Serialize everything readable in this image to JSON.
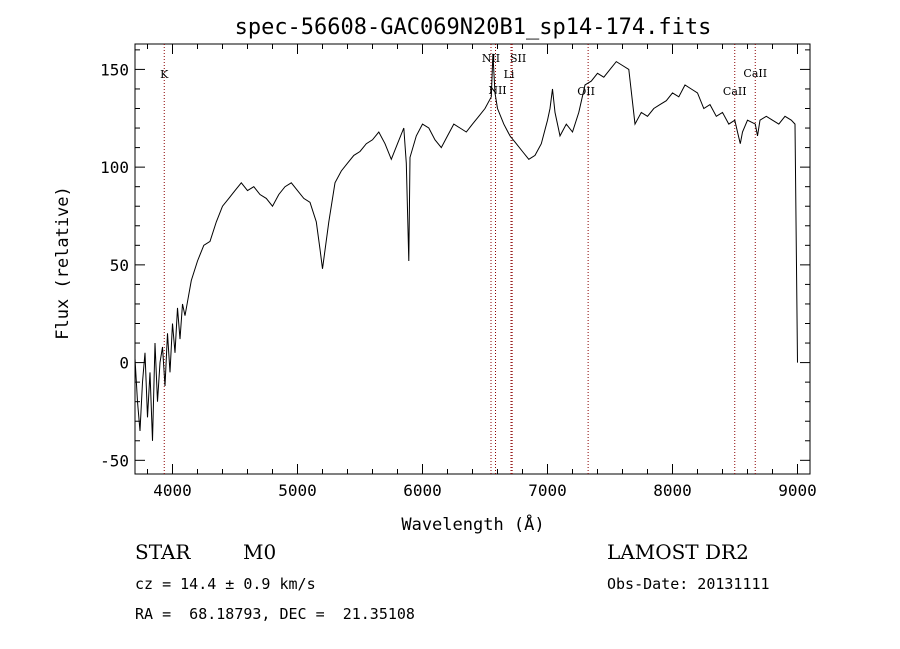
{
  "chart_data": {
    "type": "line",
    "title": "spec-56608-GAC069N20B1_sp14-174.fits",
    "xlabel": "Wavelength (Å)",
    "ylabel": "Flux (relative)",
    "xlim": [
      3700,
      9100
    ],
    "ylim": [
      -57,
      163
    ],
    "xticks": [
      4000,
      5000,
      6000,
      7000,
      8000,
      9000
    ],
    "yticks": [
      -50,
      0,
      50,
      100,
      150
    ],
    "line_color": "#000000",
    "marker_color": "#8b0000",
    "grid": false,
    "series": [
      {
        "x": [
          3700,
          3720,
          3740,
          3760,
          3780,
          3800,
          3820,
          3840,
          3860,
          3880,
          3900,
          3920,
          3940,
          3960,
          3980,
          4000,
          4020,
          4040,
          4060,
          4080,
          4100,
          4150,
          4200,
          4250,
          4300,
          4350,
          4400,
          4450,
          4500,
          4550,
          4600,
          4650,
          4700,
          4750,
          4800,
          4850,
          4900,
          4950,
          5000,
          5050,
          5100,
          5150,
          5180,
          5200,
          5250,
          5300,
          5350,
          5400,
          5450,
          5500,
          5550,
          5600,
          5650,
          5700,
          5750,
          5800,
          5850,
          5870,
          5880,
          5890,
          5900,
          5950,
          6000,
          6050,
          6100,
          6150,
          6200,
          6250,
          6300,
          6350,
          6400,
          6450,
          6500,
          6550,
          6563,
          6580,
          6600,
          6650,
          6700,
          6750,
          6800,
          6850,
          6900,
          6950,
          7000,
          7020,
          7040,
          7060,
          7080,
          7100,
          7150,
          7200,
          7250,
          7300,
          7350,
          7400,
          7450,
          7500,
          7550,
          7600,
          7650,
          7700,
          7750,
          7800,
          7850,
          7900,
          7950,
          8000,
          8050,
          8100,
          8150,
          8200,
          8250,
          8300,
          8350,
          8400,
          8450,
          8498,
          8520,
          8542,
          8560,
          8600,
          8662,
          8680,
          8700,
          8750,
          8800,
          8850,
          8900,
          8950,
          8980,
          9000
        ],
        "y": [
          2,
          -20,
          -35,
          -10,
          5,
          -28,
          -5,
          -40,
          10,
          -20,
          0,
          8,
          -12,
          15,
          -5,
          20,
          5,
          28,
          12,
          30,
          24,
          42,
          52,
          60,
          62,
          72,
          80,
          84,
          88,
          92,
          88,
          90,
          86,
          84,
          80,
          86,
          90,
          92,
          88,
          84,
          82,
          72,
          58,
          48,
          72,
          92,
          98,
          102,
          106,
          108,
          112,
          114,
          118,
          112,
          104,
          112,
          120,
          102,
          78,
          52,
          105,
          116,
          122,
          120,
          114,
          110,
          116,
          122,
          120,
          118,
          122,
          126,
          130,
          136,
          158,
          138,
          130,
          122,
          116,
          112,
          108,
          104,
          106,
          112,
          124,
          130,
          140,
          128,
          122,
          116,
          122,
          118,
          128,
          142,
          144,
          148,
          146,
          150,
          154,
          152,
          150,
          122,
          128,
          126,
          130,
          132,
          134,
          138,
          136,
          142,
          140,
          138,
          130,
          132,
          126,
          128,
          122,
          124,
          118,
          112,
          118,
          124,
          122,
          116,
          124,
          126,
          124,
          122,
          126,
          124,
          122,
          0
        ]
      }
    ],
    "spectral_lines": [
      {
        "label": "K",
        "x": 3934
      },
      {
        "label": "NII",
        "x": 6548
      },
      {
        "label": "NII",
        "x": 6584
      },
      {
        "label": "SII",
        "x": 6717
      },
      {
        "label": "Li",
        "x": 6708
      },
      {
        "label": "OII",
        "x": 7325
      },
      {
        "label": "CaII",
        "x": 8498
      },
      {
        "label": "CaII",
        "x": 8662
      }
    ]
  },
  "info": {
    "class_label": "STAR",
    "subclass": "M0",
    "survey": "LAMOST DR2",
    "redshift": "cz = 14.4 ± 0.9 km/s",
    "obs_date": "Obs-Date: 20131111",
    "coords": "RA =  68.18793, DEC =  21.35108"
  }
}
